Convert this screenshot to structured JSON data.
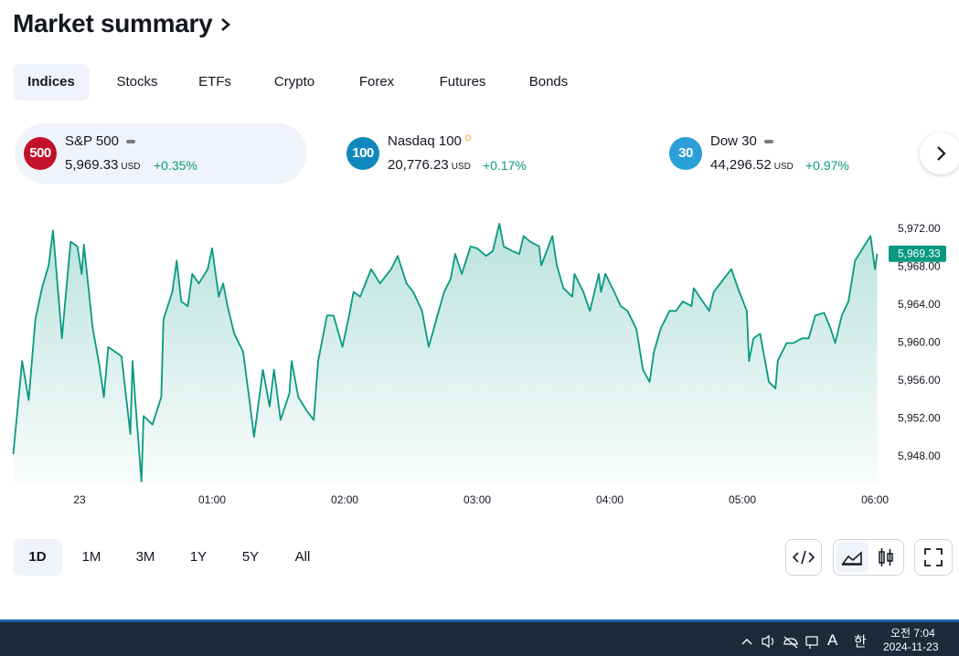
{
  "header": {
    "title": "Market summary"
  },
  "tabs": [
    "Indices",
    "Stocks",
    "ETFs",
    "Crypto",
    "Forex",
    "Futures",
    "Bonds"
  ],
  "tickers": [
    {
      "badge": "500",
      "name": "S&P 500",
      "value": "5,969.33",
      "currency": "USD",
      "change": "+0.35%"
    },
    {
      "badge": "100",
      "name": "Nasdaq 100",
      "flag": "D",
      "value": "20,776.23",
      "currency": "USD",
      "change": "+0.17%"
    },
    {
      "badge": "30",
      "name": "Dow 30",
      "value": "44,296.52",
      "currency": "USD",
      "change": "+0.97%"
    }
  ],
  "chart": {
    "type": "line",
    "color": "#089981",
    "x": [
      -30,
      -26,
      -23,
      -20,
      -17,
      -14,
      -12,
      -9,
      -8,
      -5,
      -4,
      -1,
      1,
      2,
      6,
      9,
      11,
      13,
      16,
      19,
      23,
      24,
      25,
      28,
      29,
      33,
      37,
      38,
      42,
      44,
      46,
      49,
      51,
      54,
      58,
      60,
      63,
      65,
      67,
      70,
      74,
      77,
      79,
      83,
      86,
      88,
      91,
      95,
      96,
      99,
      103,
      106,
      108,
      112,
      115,
      119,
      122,
      124,
      127,
      132,
      136,
      141,
      144,
      148,
      151,
      155,
      158,
      162,
      165,
      168,
      170,
      173,
      177,
      180,
      184,
      187,
      190,
      192,
      196,
      199,
      201,
      204,
      208,
      209,
      214,
      216,
      219,
      223,
      224,
      228,
      231,
      235,
      236,
      238,
      242,
      245,
      248,
      252,
      255,
      258,
      260,
      263,
      267,
      270,
      273,
      277,
      278,
      282,
      285,
      287,
      290,
      295,
      298,
      302,
      303,
      305,
      308,
      312,
      315,
      316,
      320,
      323,
      327,
      330,
      333,
      337,
      340,
      342,
      345,
      348,
      351,
      355,
      358,
      360,
      361
    ],
    "values": [
      5948.2,
      5958.0,
      5953.9,
      5962.4,
      5965.7,
      5968.1,
      5971.8,
      5963.3,
      5960.4,
      5968.1,
      5970.6,
      5970.1,
      5967.2,
      5970.3,
      5961.4,
      5957.5,
      5954.2,
      5959.5,
      5959.0,
      5958.5,
      5950.3,
      5958.0,
      5954.6,
      5945.3,
      5952.2,
      5951.3,
      5954.2,
      5962.4,
      5965.3,
      5968.6,
      5964.3,
      5963.8,
      5967.2,
      5966.2,
      5967.7,
      5969.9,
      5964.8,
      5966.2,
      5963.8,
      5960.9,
      5959.0,
      5953.7,
      5950.0,
      5957.1,
      5953.2,
      5957.1,
      5951.8,
      5954.6,
      5958.0,
      5954.2,
      5952.7,
      5951.8,
      5958.0,
      5962.8,
      5962.8,
      5959.5,
      5962.8,
      5965.3,
      5964.8,
      5967.7,
      5966.2,
      5967.7,
      5969.1,
      5966.2,
      5965.3,
      5963.3,
      5959.5,
      5962.8,
      5965.3,
      5966.7,
      5969.3,
      5967.2,
      5970.1,
      5969.9,
      5969.1,
      5969.6,
      5972.5,
      5970.1,
      5969.6,
      5969.3,
      5971.2,
      5970.6,
      5970.1,
      5968.1,
      5971.2,
      5968.1,
      5965.7,
      5964.8,
      5967.2,
      5965.3,
      5963.3,
      5967.2,
      5965.3,
      5967.2,
      5965.3,
      5963.8,
      5963.3,
      5961.4,
      5957.1,
      5955.8,
      5959.0,
      5961.4,
      5963.3,
      5963.3,
      5964.3,
      5963.8,
      5965.7,
      5964.3,
      5963.3,
      5965.3,
      5966.2,
      5967.7,
      5965.7,
      5963.3,
      5958.0,
      5960.4,
      5960.9,
      5955.8,
      5955.1,
      5958.0,
      5959.9,
      5959.9,
      5960.4,
      5960.4,
      5962.8,
      5963.1,
      5961.4,
      5959.9,
      5962.8,
      5964.3,
      5968.6,
      5970.1,
      5971.2,
      5967.7,
      5969.33
    ],
    "xlim": [
      -30,
      361
    ],
    "ylim": [
      5945,
      5974
    ],
    "xticks": [
      {
        "value": 0,
        "label": "23"
      },
      {
        "value": 60,
        "label": "01:00"
      },
      {
        "value": 120,
        "label": "02:00"
      },
      {
        "value": 180,
        "label": "03:00"
      },
      {
        "value": 240,
        "label": "04:00"
      },
      {
        "value": 300,
        "label": "05:00"
      },
      {
        "value": 360,
        "label": "06:00"
      }
    ],
    "yticks": [
      {
        "value": 5948,
        "label": "5,948.00"
      },
      {
        "value": 5952,
        "label": "5,952.00"
      },
      {
        "value": 5956,
        "label": "5,956.00"
      },
      {
        "value": 5960,
        "label": "5,960.00"
      },
      {
        "value": 5964,
        "label": "5,964.00"
      },
      {
        "value": 5968,
        "label": "5,968.00"
      },
      {
        "value": 5972,
        "label": "5,972.00"
      }
    ],
    "price_tag": {
      "value": 5969.33,
      "label": "5,969.33"
    }
  },
  "ranges": [
    "1D",
    "1M",
    "3M",
    "1Y",
    "5Y",
    "All"
  ],
  "taskbar": {
    "ime": "A",
    "lang": "한",
    "time": "오전 7:04",
    "date": "2024-11-23"
  }
}
